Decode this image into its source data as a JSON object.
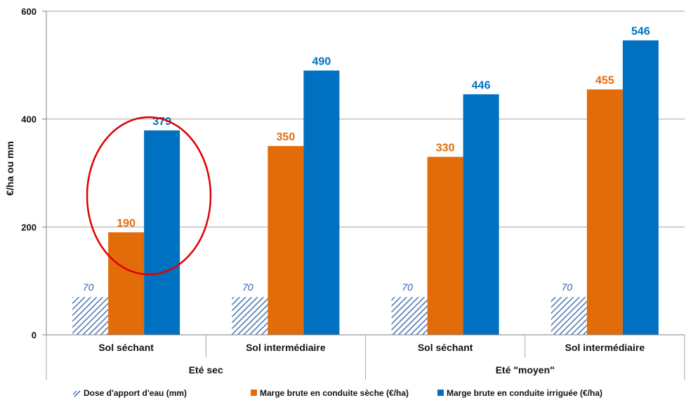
{
  "chart_data": {
    "type": "bar",
    "ylabel": "€/ha ou mm",
    "ylim": [
      0,
      600
    ],
    "yticks": [
      0,
      200,
      400,
      600
    ],
    "grid": true,
    "legend_position": "bottom",
    "groups": [
      {
        "label": "Eté sec",
        "categories": [
          "Sol séchant",
          "Sol intermédiaire"
        ]
      },
      {
        "label": "Eté \"moyen\"",
        "categories": [
          "Sol séchant",
          "Sol intermédiaire"
        ]
      }
    ],
    "categories": [
      "Sol séchant",
      "Sol intermédiaire",
      "Sol séchant",
      "Sol intermédiaire"
    ],
    "series": [
      {
        "name": "Dose d'apport d'eau (mm)",
        "values": [
          70,
          70,
          70,
          70
        ],
        "color": "#2e5fa8",
        "pattern": "hatch"
      },
      {
        "name": "Marge brute en conduite sèche (€/ha)",
        "values": [
          190,
          350,
          330,
          455
        ],
        "color": "#e36c0a"
      },
      {
        "name": "Marge brute en conduite irriguée (€/ha)",
        "values": [
          379,
          490,
          446,
          546
        ],
        "color": "#0070c0"
      }
    ],
    "annotation": {
      "type": "ellipse",
      "color": "#e00000",
      "highlight": "Eté sec / Sol séchant"
    }
  }
}
